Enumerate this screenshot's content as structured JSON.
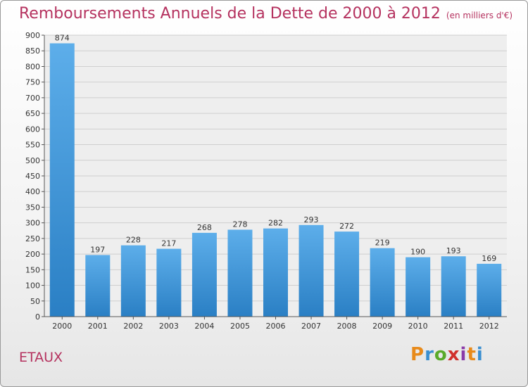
{
  "title": "Remboursements Annuels de la Dette de 2000 à 2012",
  "unit": "(en milliers d'€)",
  "commune": "ETAUX",
  "logo": [
    "P",
    "r",
    "o",
    "x",
    "i",
    "t",
    "i"
  ],
  "chart_data": {
    "type": "bar",
    "title": "Remboursements Annuels de la Dette de 2000 à 2012",
    "subtitle": "(en milliers d'€)",
    "categories": [
      "2000",
      "2001",
      "2002",
      "2003",
      "2004",
      "2005",
      "2006",
      "2007",
      "2008",
      "2009",
      "2010",
      "2011",
      "2012"
    ],
    "values": [
      874,
      197,
      228,
      217,
      268,
      278,
      282,
      293,
      272,
      219,
      190,
      193,
      169
    ],
    "ylim": [
      0,
      900
    ],
    "yticks": [
      0,
      50,
      100,
      150,
      200,
      250,
      300,
      350,
      400,
      450,
      500,
      550,
      600,
      650,
      700,
      750,
      800,
      850,
      900
    ],
    "grid": true,
    "colors": {
      "bar_light": "#5daeea",
      "bar_dark": "#2a7fc4",
      "title": "#b5325f"
    }
  }
}
